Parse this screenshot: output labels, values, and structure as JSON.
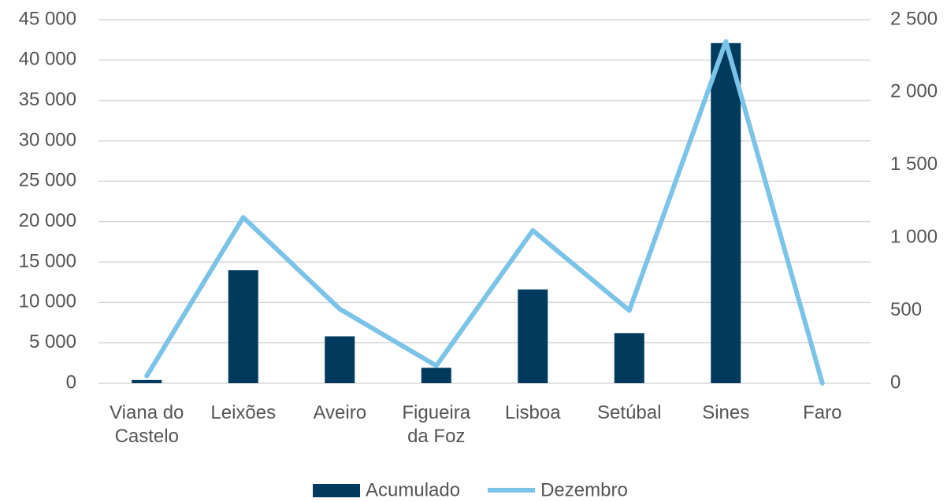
{
  "chart_data": {
    "type": "bar-line",
    "categories": [
      "Viana do Castelo",
      "Leixões",
      "Aveiro",
      "Figueira da Foz",
      "Lisboa",
      "Setúbal",
      "Sines",
      "Faro"
    ],
    "series": [
      {
        "name": "Acumulado",
        "type": "bar",
        "color": "#003a5c",
        "values": [
          400,
          14000,
          5800,
          1900,
          11600,
          6200,
          42100,
          0
        ]
      },
      {
        "name": "Dezembro",
        "type": "line",
        "axis": "y2",
        "color": "#7cc3e8",
        "values": [
          50,
          1140,
          510,
          120,
          1050,
          500,
          2350,
          0
        ]
      }
    ],
    "ylim": [
      0,
      45000
    ],
    "yticks": [
      0,
      {
        "value": 5000,
        "label": "5 000"
      },
      {
        "value": 10000,
        "label": "10 000"
      },
      {
        "value": 15000,
        "label": "15 000"
      },
      {
        "value": 20000,
        "label": "20 000"
      },
      {
        "value": 25000,
        "label": "25 000"
      },
      {
        "value": 30000,
        "label": "30 000"
      },
      {
        "value": 35000,
        "label": "35 000"
      },
      {
        "value": 40000,
        "label": "40 000"
      },
      {
        "value": 45000,
        "label": "45 000"
      }
    ],
    "y2lim": [
      0,
      2500
    ],
    "y2ticks": [
      0,
      500,
      {
        "value": 1000,
        "label": "1 000"
      },
      {
        "value": 1500,
        "label": "1 500"
      },
      {
        "value": 2000,
        "label": "2 000"
      },
      {
        "value": 2500,
        "label": "2 500"
      }
    ],
    "grid": true,
    "legend": "bottom"
  }
}
